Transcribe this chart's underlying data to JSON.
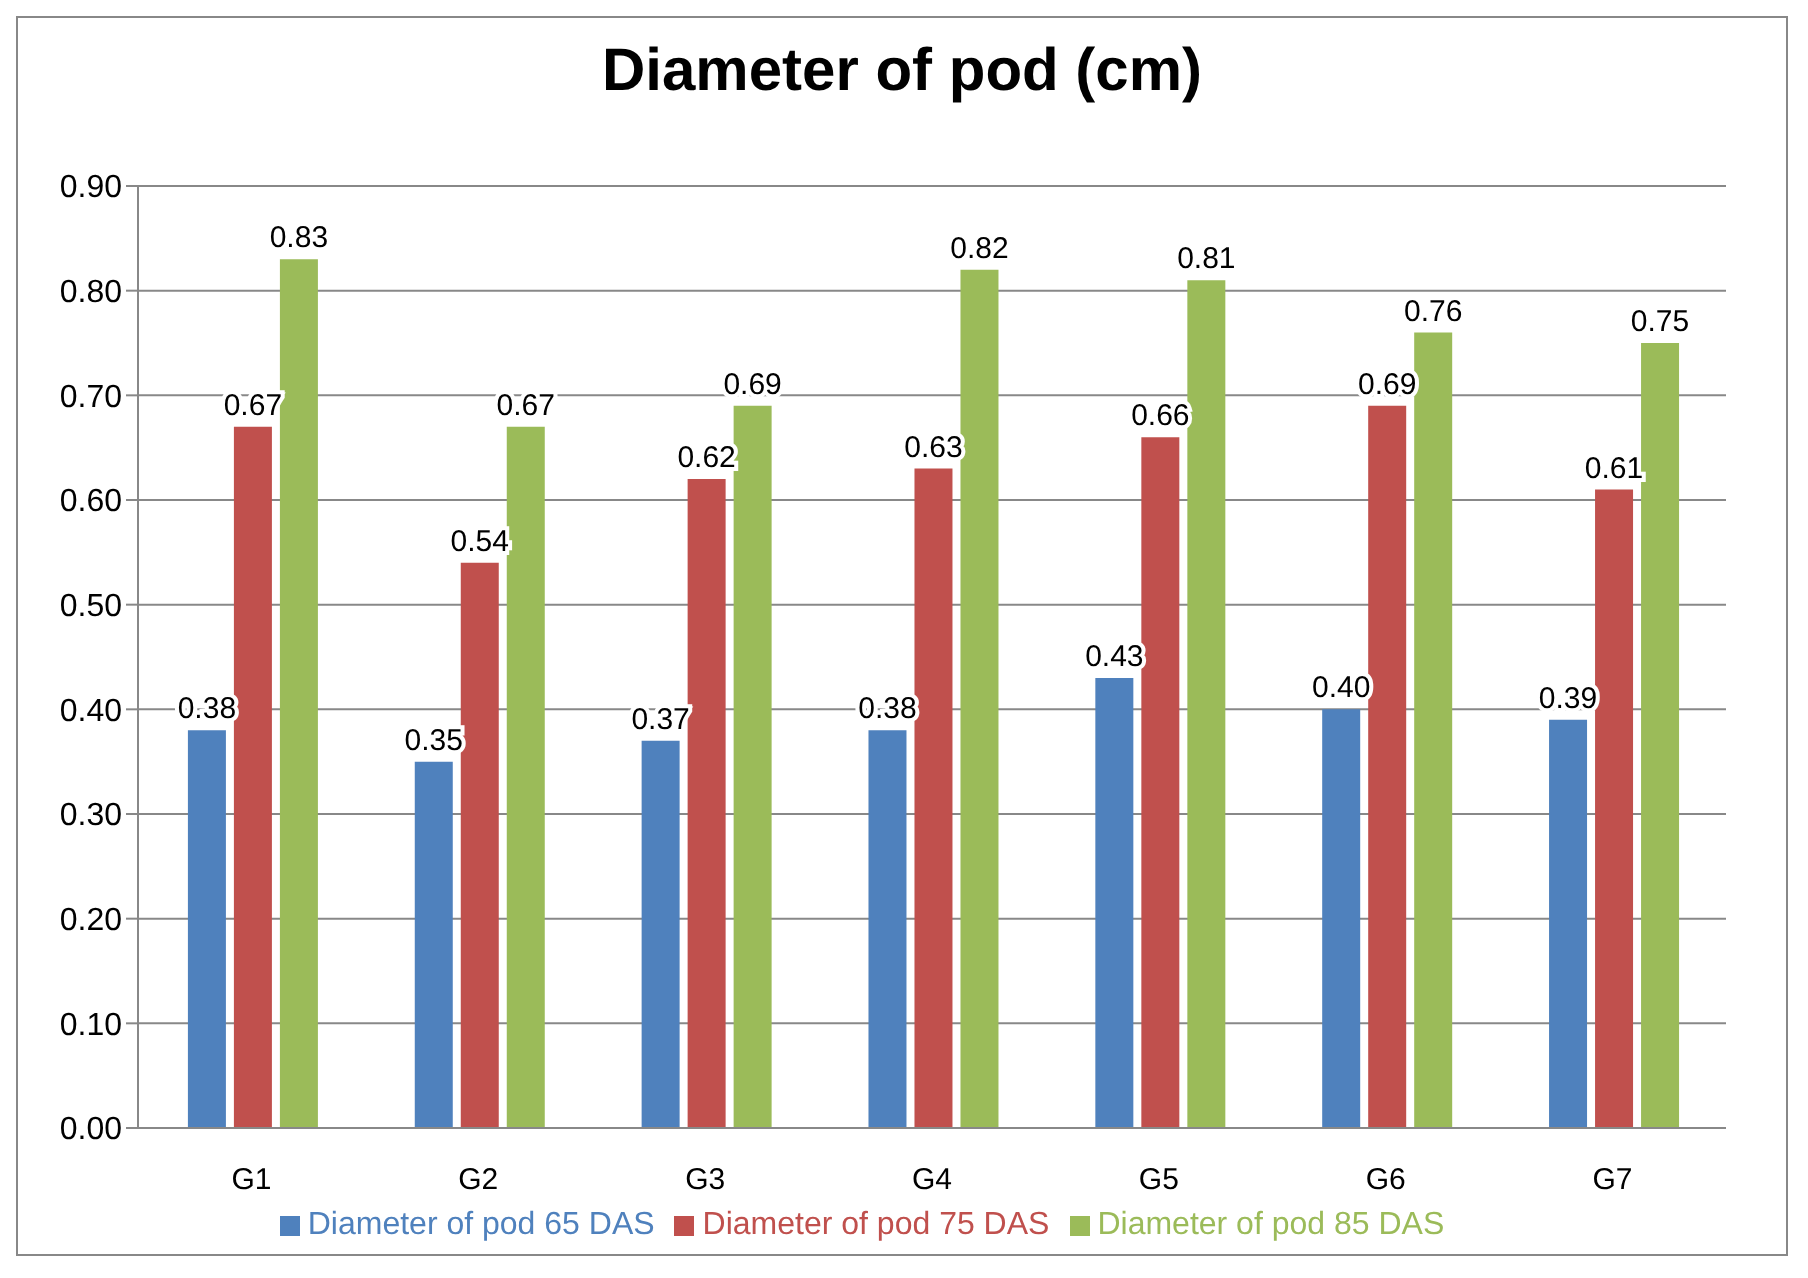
{
  "chart_data": {
    "type": "bar",
    "title": "Diameter of pod (cm)",
    "categories": [
      "G1",
      "G2",
      "G3",
      "G4",
      "G5",
      "G6",
      "G7"
    ],
    "series": [
      {
        "name": "Diameter of pod 65 DAS",
        "color": "#4f81bd",
        "values": [
          0.38,
          0.35,
          0.37,
          0.38,
          0.43,
          0.4,
          0.39
        ],
        "value_labels": [
          "0.38",
          "0.35",
          "0.37",
          "0.38",
          "0.43",
          "0.40",
          "0.39"
        ]
      },
      {
        "name": "Diameter of pod 75 DAS",
        "color": "#c0504d",
        "values": [
          0.67,
          0.54,
          0.62,
          0.63,
          0.66,
          0.69,
          0.61
        ],
        "value_labels": [
          "0.67",
          "0.54",
          "0.62",
          "0.63",
          "0.66",
          "0.69",
          "0.61"
        ]
      },
      {
        "name": "Diameter of pod 85 DAS",
        "color": "#9bbb59",
        "values": [
          0.83,
          0.67,
          0.69,
          0.82,
          0.81,
          0.76,
          0.75
        ],
        "value_labels": [
          "0.83",
          "0.67",
          "0.69",
          "0.82",
          "0.81",
          "0.76",
          "0.75"
        ]
      }
    ],
    "ylim": [
      0,
      0.9
    ],
    "yticks": [
      {
        "value": 0,
        "label": "0.00"
      },
      {
        "value": 0.1,
        "label": "0.10"
      },
      {
        "value": 0.2,
        "label": "0.20"
      },
      {
        "value": 0.3,
        "label": "0.30"
      },
      {
        "value": 0.4,
        "label": "0.40"
      },
      {
        "value": 0.5,
        "label": "0.50"
      },
      {
        "value": 0.6,
        "label": "0.60"
      },
      {
        "value": 0.7,
        "label": "0.70"
      },
      {
        "value": 0.8,
        "label": "0.80"
      },
      {
        "value": 0.9,
        "label": "0.90"
      }
    ],
    "grid": "y",
    "legend": "bottom"
  }
}
